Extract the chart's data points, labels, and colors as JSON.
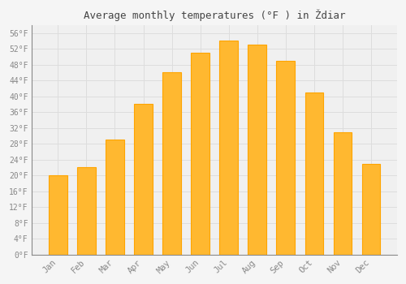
{
  "title": "Average monthly temperatures (°F ) in Ždiar",
  "months": [
    "Jan",
    "Feb",
    "Mar",
    "Apr",
    "May",
    "Jun",
    "Jul",
    "Aug",
    "Sep",
    "Oct",
    "Nov",
    "Dec"
  ],
  "values": [
    20,
    22,
    29,
    38,
    46,
    51,
    54,
    53,
    49,
    41,
    31,
    23
  ],
  "bar_color": "#FFA500",
  "bar_face_color": "#FFB830",
  "background_color": "#F5F5F5",
  "plot_bg_color": "#F0F0F0",
  "grid_color": "#DDDDDD",
  "tick_color": "#888888",
  "title_color": "#444444",
  "ylim": [
    0,
    58
  ],
  "ytick_step": 4,
  "ytick_unit": "°F",
  "figsize": [
    5.0,
    3.5
  ],
  "dpi": 100
}
